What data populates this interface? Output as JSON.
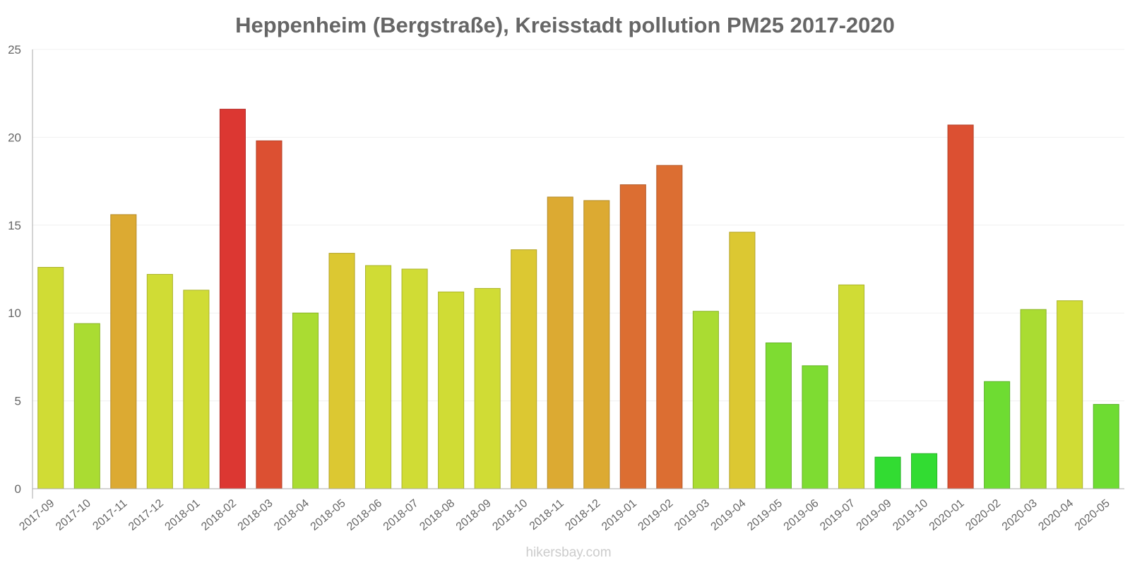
{
  "chart_data": {
    "type": "bar",
    "title": "Heppenheim (Bergstraße), Kreisstadt pollution PM25 2017-2020",
    "xlabel": "",
    "ylabel": "",
    "ylim": [
      0,
      25
    ],
    "yticks": [
      "0",
      "5",
      "10",
      "15",
      "20",
      "25"
    ],
    "categories": [
      "2017-09",
      "2017-10",
      "2017-11",
      "2017-12",
      "2018-01",
      "2018-02",
      "2018-03",
      "2018-04",
      "2018-05",
      "2018-06",
      "2018-07",
      "2018-08",
      "2018-09",
      "2018-10",
      "2018-11",
      "2018-12",
      "2019-01",
      "2019-02",
      "2019-03",
      "2019-04",
      "2019-05",
      "2019-06",
      "2019-07",
      "2019-09",
      "2019-10",
      "2020-01",
      "2020-02",
      "2020-03",
      "2020-04",
      "2020-05"
    ],
    "values": [
      12.6,
      9.4,
      15.6,
      12.2,
      11.3,
      21.6,
      19.8,
      10.0,
      13.4,
      12.7,
      12.5,
      11.2,
      11.4,
      13.6,
      16.6,
      16.4,
      17.3,
      18.4,
      10.1,
      14.6,
      8.3,
      7.0,
      11.6,
      1.8,
      2.0,
      20.7,
      6.1,
      10.2,
      10.7,
      4.8
    ],
    "colors": [
      "#d0dc35",
      "#aadc32",
      "#dcaa32",
      "#d0dc35",
      "#d0dc35",
      "#dc3732",
      "#dc5032",
      "#aadc32",
      "#dcc832",
      "#d0dc35",
      "#d0dc35",
      "#d0dc35",
      "#d0dc35",
      "#dcc832",
      "#dcaa32",
      "#dcaa32",
      "#dc6e32",
      "#dc6e32",
      "#aadc32",
      "#dcc832",
      "#7edc32",
      "#7edc32",
      "#d0dc35",
      "#32dc32",
      "#32dc32",
      "#dc5032",
      "#6edc32",
      "#aadc32",
      "#d0dc35",
      "#6edc32"
    ],
    "watermark": "hikersbay.com"
  }
}
